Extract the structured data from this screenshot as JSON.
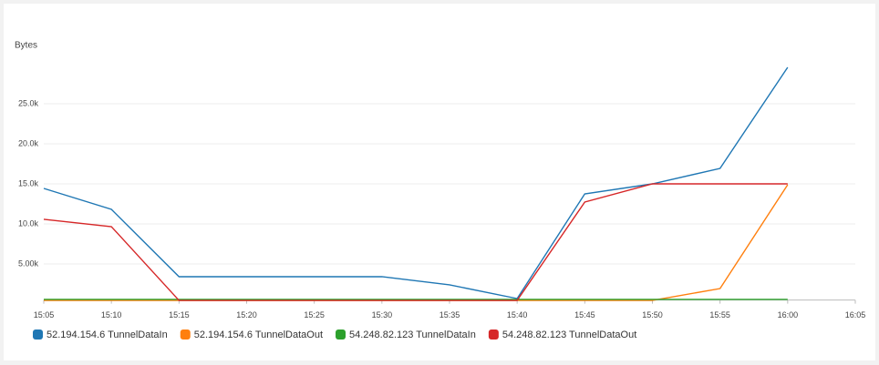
{
  "chart_data": {
    "type": "line",
    "y_label": "Bytes",
    "categories": [
      "15:05",
      "15:10",
      "15:15",
      "15:20",
      "15:25",
      "15:30",
      "15:35",
      "15:40",
      "15:45",
      "15:50",
      "15:55",
      "16:00",
      "16:05"
    ],
    "series": [
      {
        "name": "52.194.154.6 TunnelDataIn",
        "color": "#1f77b4",
        "values": [
          14430,
          11820,
          3410,
          3410,
          3410,
          3410,
          2390,
          680,
          13750,
          15000,
          16930,
          29550,
          null
        ]
      },
      {
        "name": "52.194.154.6 TunnelDataOut",
        "color": "#ff7f0e",
        "values": [
          450,
          450,
          450,
          450,
          450,
          450,
          450,
          450,
          450,
          450,
          1930,
          14890,
          null
        ]
      },
      {
        "name": "54.248.82.123 TunnelDataIn",
        "color": "#2ca02c",
        "values": [
          570,
          570,
          570,
          570,
          570,
          570,
          570,
          570,
          570,
          570,
          570,
          570,
          null
        ]
      },
      {
        "name": "54.248.82.123 TunnelDataOut",
        "color": "#d62728",
        "values": [
          10570,
          9660,
          450,
          450,
          450,
          450,
          450,
          450,
          12730,
          15000,
          15000,
          15000,
          null
        ]
      }
    ],
    "ylim": [
      500,
      30000
    ],
    "yticks": [
      {
        "value": 5000,
        "label": "5.00k"
      },
      {
        "value": 10000,
        "label": "10.0k"
      },
      {
        "value": 15000,
        "label": "15.0k"
      },
      {
        "value": 20000,
        "label": "20.0k"
      },
      {
        "value": 25000,
        "label": "25.0k"
      }
    ],
    "grid": true
  }
}
